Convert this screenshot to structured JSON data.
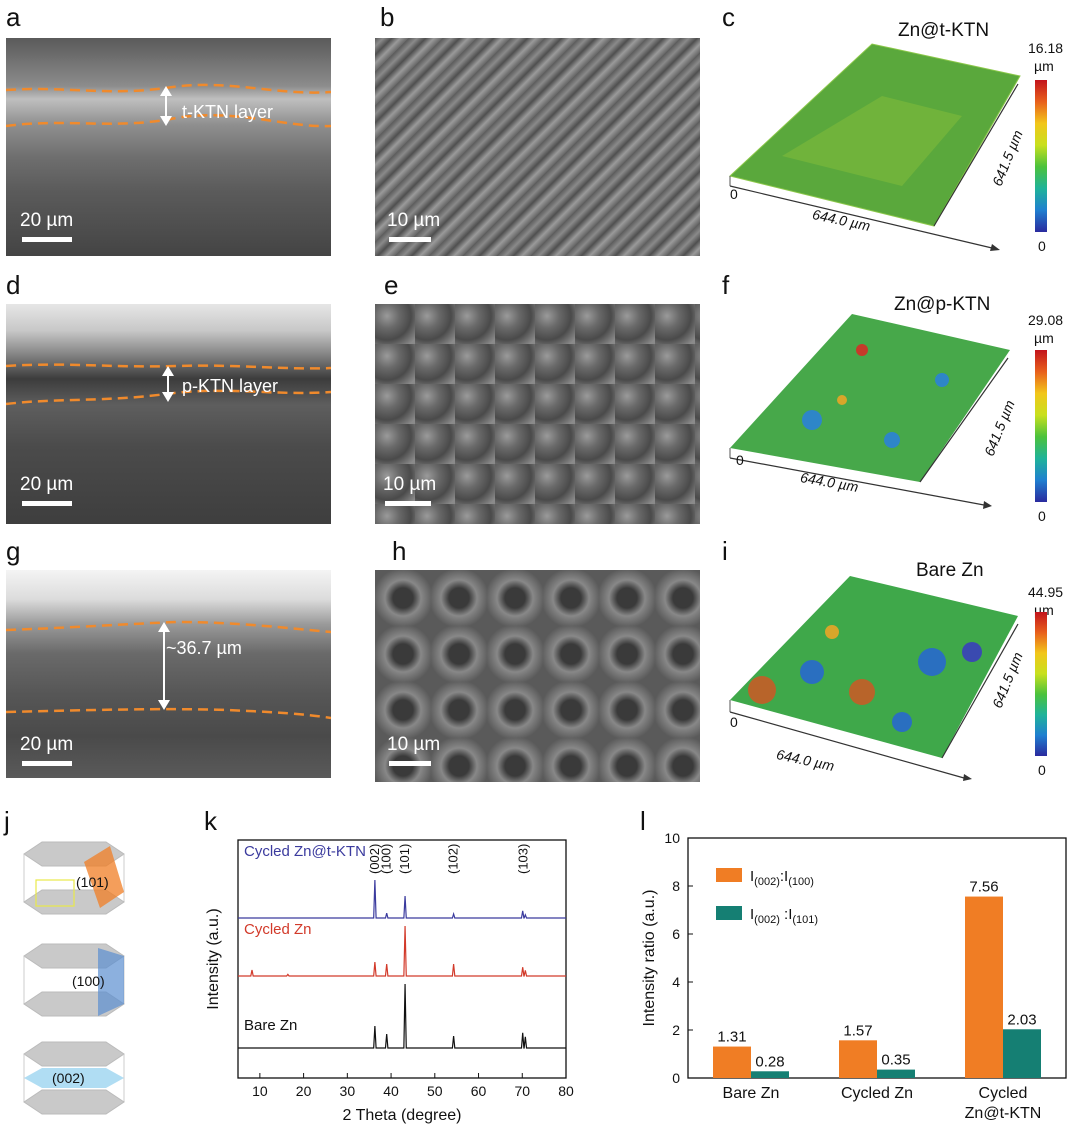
{
  "panels": {
    "a": {
      "letter": "a",
      "scale": "20 µm",
      "layer": "t-KTN layer"
    },
    "b": {
      "letter": "b",
      "scale": "10 µm"
    },
    "c": {
      "letter": "c",
      "title": "Zn@t-KTN",
      "cmax": "16.18",
      "unit": "µm",
      "cmin": "0",
      "origin": "0",
      "xdim": "644.0 µm",
      "ydim": "641.5 µm"
    },
    "d": {
      "letter": "d",
      "scale": "20 µm",
      "layer": "p-KTN layer"
    },
    "e": {
      "letter": "e",
      "scale": "10 µm"
    },
    "f": {
      "letter": "f",
      "title": "Zn@p-KTN",
      "cmax": "29.08",
      "unit": "µm",
      "cmin": "0",
      "origin": "0",
      "xdim": "644.0 µm",
      "ydim": "641.5 µm"
    },
    "g": {
      "letter": "g",
      "scale": "20 µm",
      "layer": "~36.7 µm"
    },
    "h": {
      "letter": "h",
      "scale": "10 µm"
    },
    "i": {
      "letter": "i",
      "title": "Bare Zn",
      "cmax": "44.95",
      "unit": "µm",
      "cmin": "0",
      "origin": "0",
      "xdim": "644.0 µm",
      "ydim": "641.5 µm"
    },
    "j": {
      "letter": "j",
      "planes": [
        "(101)",
        "(100)",
        "(002)"
      ]
    },
    "k": {
      "letter": "k"
    },
    "l": {
      "letter": "l"
    }
  },
  "colors": {
    "orange": "#f07d24",
    "teal": "#157f73",
    "blue": "#3b3b9e",
    "red": "#d23a2a",
    "black": "#111111",
    "dash": "#f08a2c"
  },
  "chart_data": [
    {
      "type": "line",
      "panel": "k",
      "xlabel": "2 Theta (degree)",
      "ylabel": "Intensity (a.u.)",
      "xlim": [
        5,
        80
      ],
      "xticks": [
        10,
        20,
        30,
        40,
        50,
        60,
        70,
        80
      ],
      "series": [
        {
          "name": "Cycled Zn@t-KTN",
          "color": "#3b3b9e",
          "peaks": [
            [
              36.3,
              0.95
            ],
            [
              39.0,
              0.12
            ],
            [
              43.2,
              0.55
            ],
            [
              54.3,
              0.1
            ],
            [
              70.1,
              0.18
            ],
            [
              70.7,
              0.08
            ]
          ]
        },
        {
          "name": "Cycled Zn",
          "color": "#d23a2a",
          "peaks": [
            [
              8.2,
              0.15
            ],
            [
              16.4,
              0.04
            ],
            [
              36.3,
              0.35
            ],
            [
              39.0,
              0.3
            ],
            [
              43.2,
              1.25
            ],
            [
              54.3,
              0.3
            ],
            [
              70.1,
              0.22
            ],
            [
              70.7,
              0.14
            ]
          ]
        },
        {
          "name": "Bare Zn",
          "color": "#111111",
          "peaks": [
            [
              36.3,
              0.55
            ],
            [
              39.0,
              0.35
            ],
            [
              43.2,
              1.6
            ],
            [
              54.3,
              0.3
            ],
            [
              70.1,
              0.38
            ],
            [
              70.7,
              0.28
            ]
          ]
        }
      ],
      "peak_labels": [
        {
          "x": 36.3,
          "label": "(002)"
        },
        {
          "x": 39.0,
          "label": "(100)"
        },
        {
          "x": 43.2,
          "label": "(101)"
        },
        {
          "x": 54.3,
          "label": "(102)"
        },
        {
          "x": 70.3,
          "label": "(103)"
        }
      ]
    },
    {
      "type": "bar",
      "panel": "l",
      "categories": [
        "Bare Zn",
        "Cycled Zn",
        "Cycled\nZn@t-KTN"
      ],
      "ylabel": "Intensity ratio (a.u.)",
      "ylim": [
        0,
        10
      ],
      "yticks": [
        0,
        2,
        4,
        6,
        8,
        10
      ],
      "legend": "top-left",
      "series": [
        {
          "name": "I(002):I(100)",
          "color": "#f07d24",
          "values": [
            1.31,
            1.57,
            7.56
          ],
          "labels": [
            "1.31",
            "1.57",
            "7.56"
          ]
        },
        {
          "name": "I(002) :I(101)",
          "color": "#157f73",
          "values": [
            0.28,
            0.35,
            2.03
          ],
          "labels": [
            "0.28",
            "0.35",
            "2.03"
          ]
        }
      ]
    }
  ]
}
